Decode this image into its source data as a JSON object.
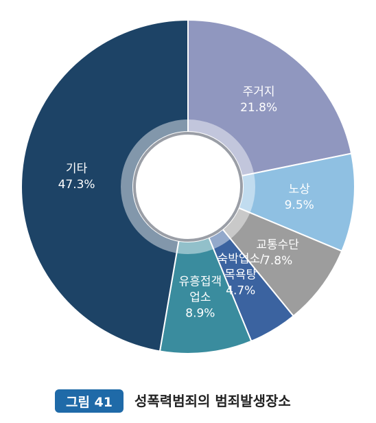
{
  "chart_data": {
    "type": "pie",
    "categories": [
      "주거지",
      "노상",
      "교통수단",
      "숙박업소/목욕탕",
      "유흥접객업소",
      "기타"
    ],
    "values": [
      21.8,
      9.5,
      7.8,
      4.7,
      8.9,
      47.3
    ],
    "value_labels": [
      "21.8%",
      "9.5%",
      "7.8%",
      "4.7%",
      "8.9%",
      "47.3%"
    ],
    "colors": [
      "#9097bf",
      "#8fc0e2",
      "#9d9d9d",
      "#3b63a0",
      "#3a8c9e",
      "#1d4366"
    ],
    "figure_label": "그림 41",
    "title": "성폭력범죄의 범죄발생장소"
  }
}
